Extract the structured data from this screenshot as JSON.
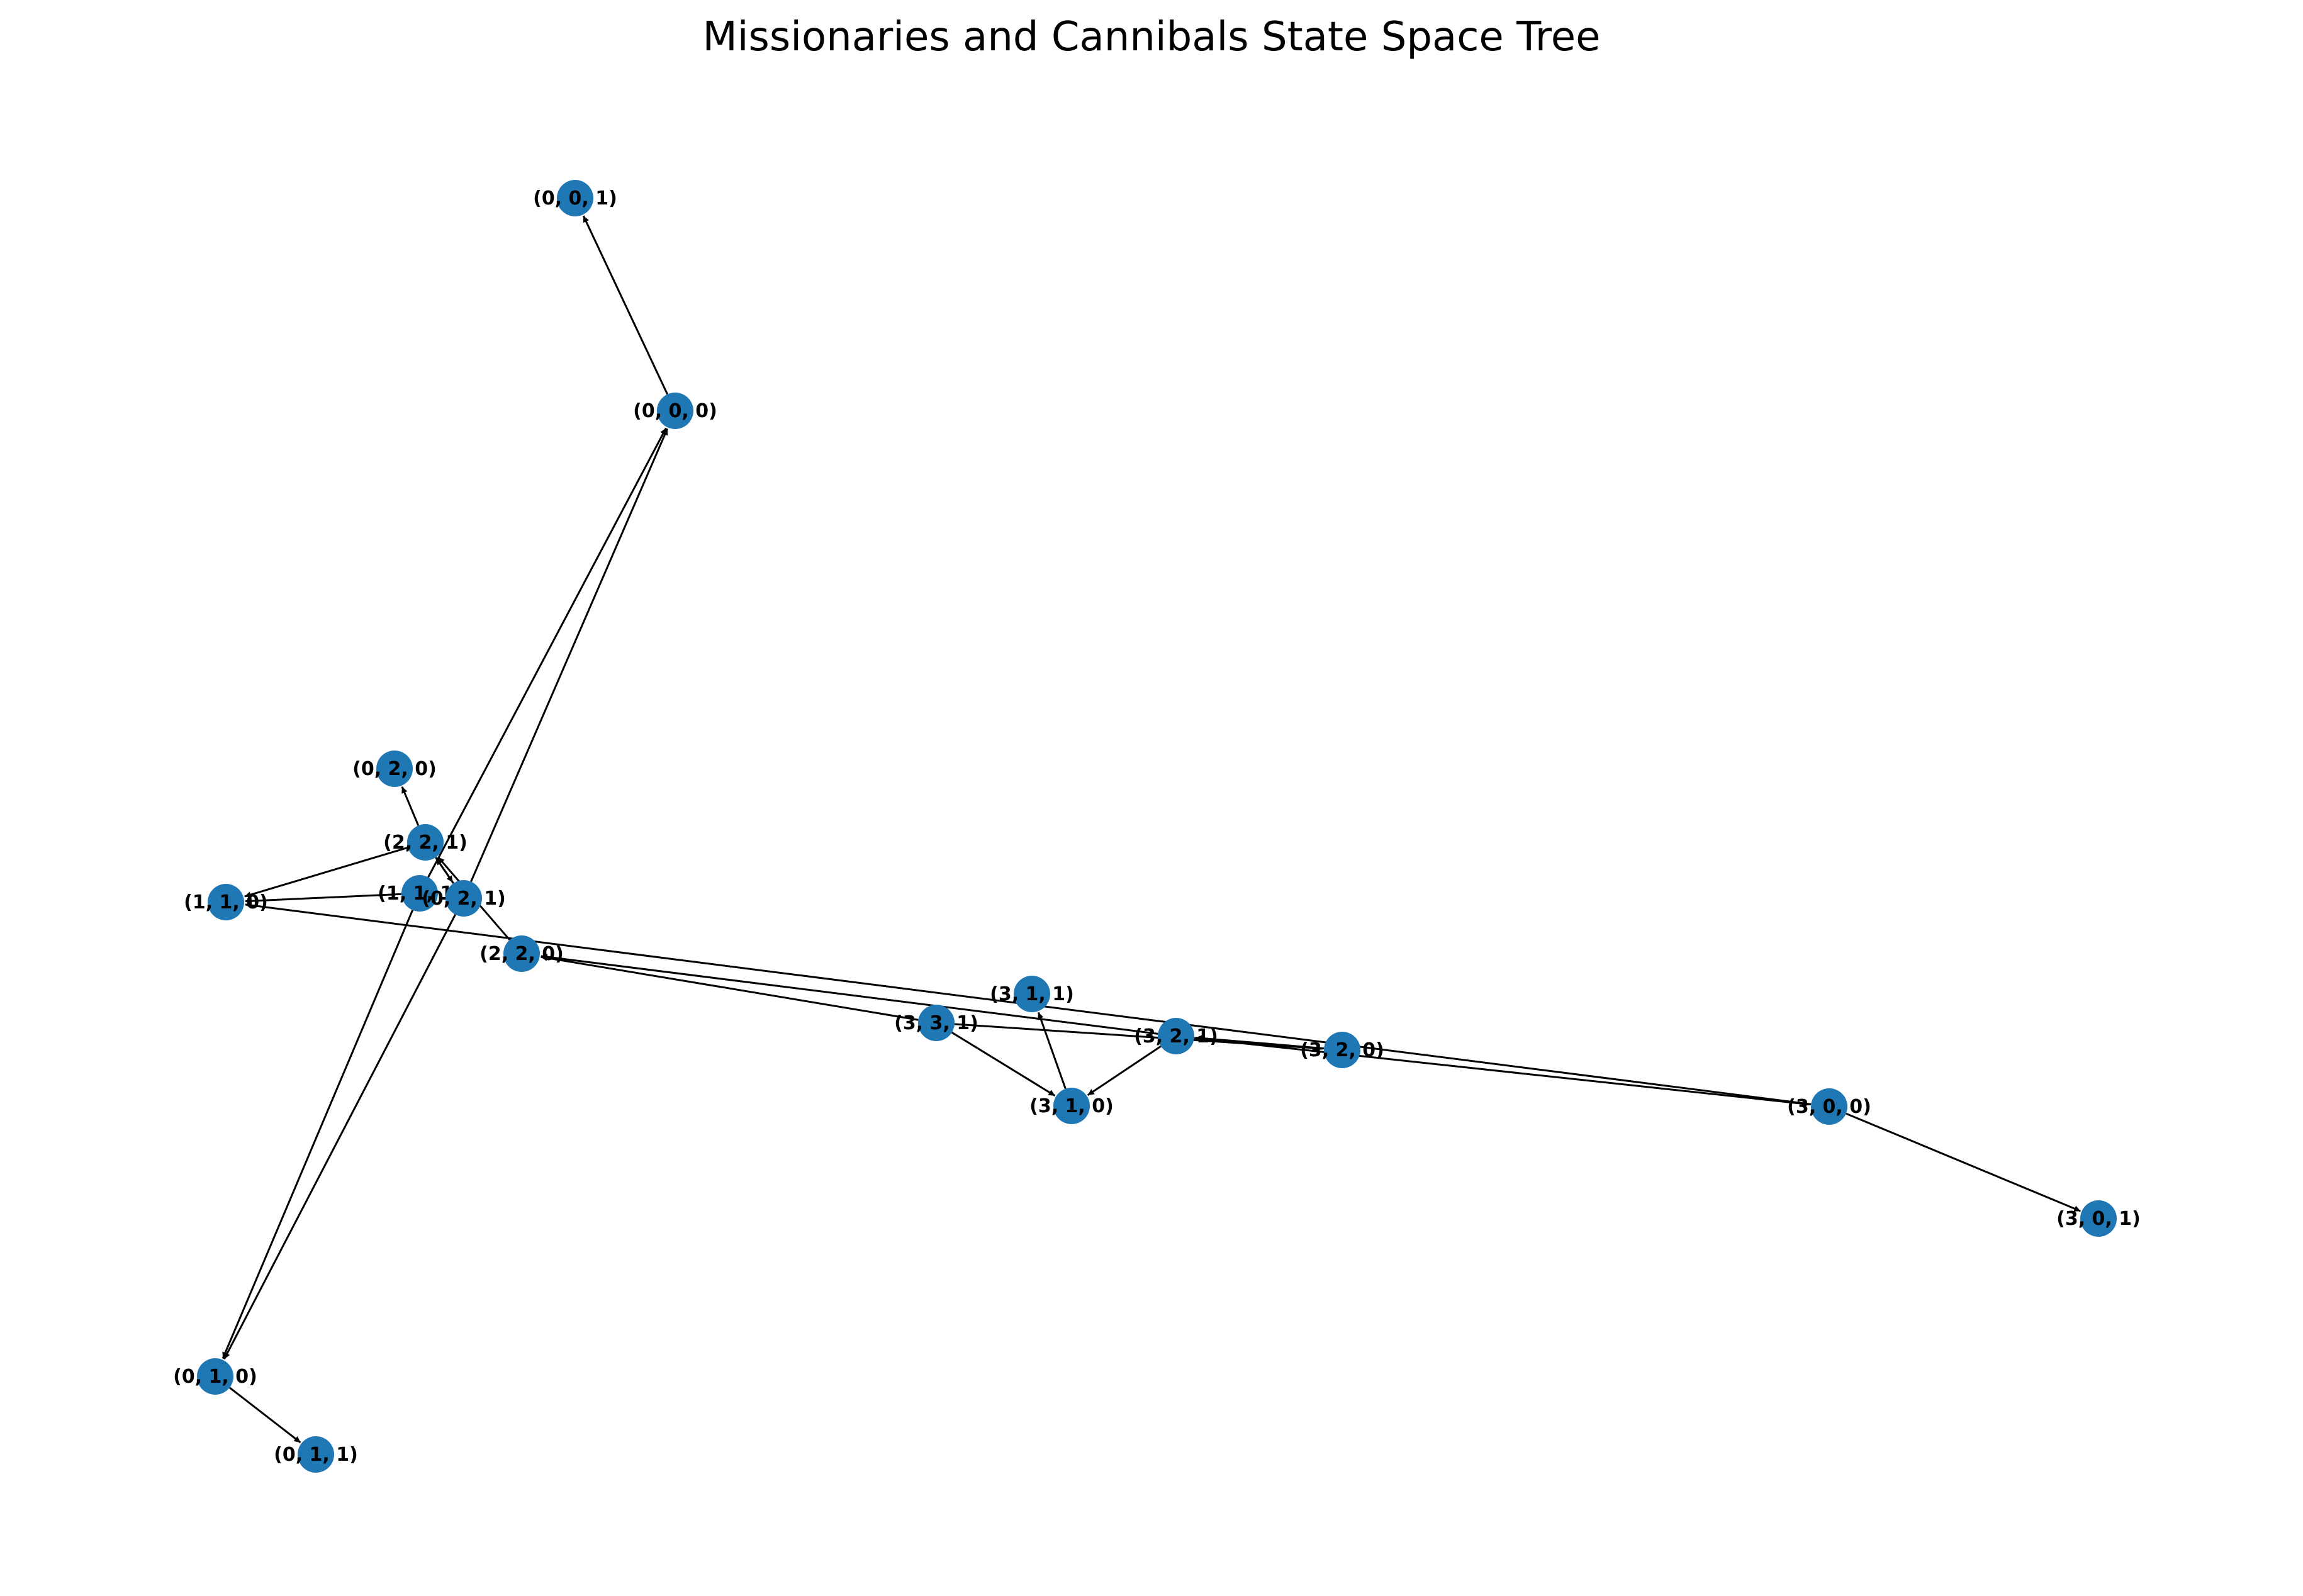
{
  "title": "Missionaries and Cannibals State Space Tree",
  "node_color": "#1f77b4",
  "edge_color": "#000000",
  "nodes": [
    {
      "id": "n001",
      "label": "(0, 0, 1)"
    },
    {
      "id": "n000",
      "label": "(0, 0, 0)"
    },
    {
      "id": "n020",
      "label": "(0, 2, 0)"
    },
    {
      "id": "n221",
      "label": "(2, 2, 1)"
    },
    {
      "id": "n111",
      "label": "(1, 1, 1)"
    },
    {
      "id": "n110",
      "label": "(1, 1, 0)"
    },
    {
      "id": "n021",
      "label": "(0, 2, 1)"
    },
    {
      "id": "n220",
      "label": "(2, 2, 0)"
    },
    {
      "id": "n311",
      "label": "(3, 1, 1)"
    },
    {
      "id": "n331",
      "label": "(3, 3, 1)"
    },
    {
      "id": "n321",
      "label": "(3, 2, 1)"
    },
    {
      "id": "n320",
      "label": "(3, 2, 0)"
    },
    {
      "id": "n310",
      "label": "(3, 1, 0)"
    },
    {
      "id": "n300",
      "label": "(3, 0, 0)"
    },
    {
      "id": "n301",
      "label": "(3, 0, 1)"
    },
    {
      "id": "n010",
      "label": "(0, 1, 0)"
    },
    {
      "id": "n011",
      "label": "(0, 1, 1)"
    }
  ],
  "edges": [
    {
      "from": "n000",
      "to": "n001"
    },
    {
      "from": "n111",
      "to": "n000"
    },
    {
      "from": "n021",
      "to": "n000"
    },
    {
      "from": "n221",
      "to": "n020"
    },
    {
      "from": "n221",
      "to": "n110"
    },
    {
      "from": "n221",
      "to": "n021"
    },
    {
      "from": "n021",
      "to": "n221"
    },
    {
      "from": "n111",
      "to": "n110"
    },
    {
      "from": "n220",
      "to": "n221"
    },
    {
      "from": "n300",
      "to": "n110"
    },
    {
      "from": "n321",
      "to": "n220"
    },
    {
      "from": "n331",
      "to": "n220"
    },
    {
      "from": "n331",
      "to": "n320"
    },
    {
      "from": "n331",
      "to": "n310"
    },
    {
      "from": "n321",
      "to": "n310"
    },
    {
      "from": "n310",
      "to": "n311"
    },
    {
      "from": "n320",
      "to": "n321"
    },
    {
      "from": "n321",
      "to": "n300"
    },
    {
      "from": "n300",
      "to": "n301"
    },
    {
      "from": "n111",
      "to": "n010"
    },
    {
      "from": "n021",
      "to": "n010"
    },
    {
      "from": "n010",
      "to": "n011"
    }
  ]
}
